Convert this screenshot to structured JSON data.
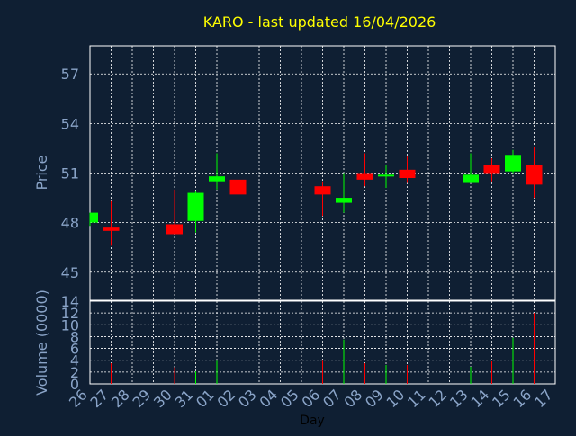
{
  "chart_data": {
    "type": "candlestick",
    "title": "KARO - last updated 16/04/2026",
    "price_panel": {
      "ylabel": "Price",
      "ylim": [
        43.3,
        58.7
      ],
      "yticks": [
        45,
        48,
        51,
        54,
        57
      ],
      "grid": true
    },
    "volume_panel": {
      "ylabel": "Volume (0000)",
      "ylim": [
        0,
        14
      ],
      "yticks": [
        0,
        2,
        4,
        6,
        8,
        10,
        12,
        14
      ],
      "grid": true
    },
    "xlabel": "Day",
    "x_ticks": [
      "26",
      "27",
      "28",
      "29",
      "30",
      "31",
      "01",
      "02",
      "03",
      "04",
      "05",
      "06",
      "07",
      "08",
      "09",
      "10",
      "11",
      "12",
      "13",
      "14",
      "15",
      "16",
      "17"
    ],
    "candles": [
      {
        "day": "26",
        "open": 48.0,
        "high": 48.6,
        "low": 47.8,
        "close": 48.6,
        "volume": 0
      },
      {
        "day": "27",
        "open": 47.7,
        "high": 49.3,
        "low": 46.6,
        "close": 47.5,
        "volume": 3.5
      },
      {
        "day": "30",
        "open": 47.9,
        "high": 50.0,
        "low": 47.3,
        "close": 47.3,
        "volume": 2.8
      },
      {
        "day": "31",
        "open": 48.1,
        "high": 49.9,
        "low": 47.4,
        "close": 49.8,
        "volume": 2.1
      },
      {
        "day": "01",
        "open": 50.5,
        "high": 52.2,
        "low": 50.0,
        "close": 50.8,
        "volume": 3.9
      },
      {
        "day": "02",
        "open": 50.6,
        "high": 50.6,
        "low": 47.0,
        "close": 49.7,
        "volume": 5.8
      },
      {
        "day": "06",
        "open": 50.2,
        "high": 50.5,
        "low": 48.4,
        "close": 49.7,
        "volume": 3.9
      },
      {
        "day": "07",
        "open": 49.2,
        "high": 51.0,
        "low": 48.6,
        "close": 49.5,
        "volume": 7.5
      },
      {
        "day": "08",
        "open": 51.0,
        "high": 52.2,
        "low": 50.2,
        "close": 50.6,
        "volume": 3.5
      },
      {
        "day": "09",
        "open": 50.8,
        "high": 51.5,
        "low": 50.1,
        "close": 50.9,
        "volume": 3.2
      },
      {
        "day": "10",
        "open": 51.2,
        "high": 52.0,
        "low": 50.4,
        "close": 50.7,
        "volume": 3.2
      },
      {
        "day": "13",
        "open": 50.4,
        "high": 52.2,
        "low": 50.4,
        "close": 50.9,
        "volume": 2.9
      },
      {
        "day": "14",
        "open": 51.5,
        "high": 51.9,
        "low": 50.5,
        "close": 51.0,
        "volume": 3.8
      },
      {
        "day": "15",
        "open": 51.1,
        "high": 52.4,
        "low": 51.0,
        "close": 52.1,
        "volume": 7.8
      },
      {
        "day": "16",
        "open": 51.5,
        "high": 52.6,
        "low": 49.5,
        "close": 50.3,
        "volume": 12.0
      }
    ],
    "colors": {
      "background": "#0f1f33",
      "title": "#ffff00",
      "axis_text": "#8aa4c8",
      "up": "#00ff00",
      "down": "#ff0000",
      "grid": "#ffffff"
    }
  }
}
